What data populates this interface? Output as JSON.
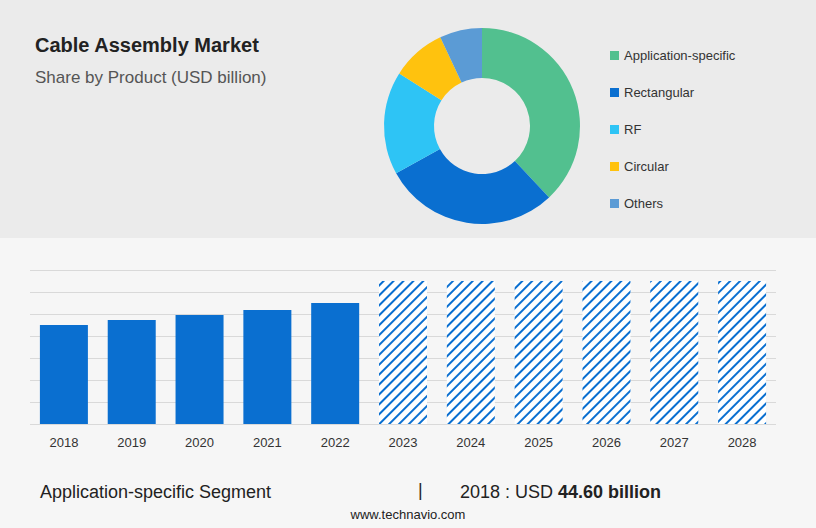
{
  "chart_data": [
    {
      "type": "pie",
      "title": "Cable Assembly Market",
      "subtitle": "Share by Product (USD billion)",
      "categories": [
        "Application-specific",
        "Rectangular",
        "RF",
        "Circular",
        "Others"
      ],
      "values": [
        38,
        29,
        17,
        9,
        7
      ],
      "colors": [
        "#52c08f",
        "#0a6fd0",
        "#2ec4f5",
        "#ffc20e",
        "#5b9bd5"
      ],
      "legend": "right"
    },
    {
      "type": "bar",
      "categories": [
        "2018",
        "2019",
        "2020",
        "2021",
        "2022",
        "2023",
        "2024",
        "2025",
        "2026",
        "2027",
        "2028"
      ],
      "series": [
        {
          "color": "#0a6fd0",
          "values": [
            90,
            94.5,
            99,
            103.6,
            110,
            null,
            null,
            null,
            null,
            null,
            null
          ]
        },
        {
          "color": "#0a6fd0",
          "line_style": "hatched",
          "values": [
            null,
            null,
            null,
            null,
            null,
            130,
            130,
            130,
            130,
            130,
            130
          ]
        }
      ],
      "ylim": [
        0,
        140
      ],
      "yticks": [
        0,
        20,
        40,
        60,
        80,
        100,
        120,
        140
      ],
      "grid": true,
      "tick_labels": "x"
    }
  ],
  "footer": {
    "segment": "Application-specific Segment",
    "separator": "|",
    "text": "2018 : USD ",
    "value": "44.60",
    "unit": " billion"
  },
  "source": "www.technavio.com"
}
